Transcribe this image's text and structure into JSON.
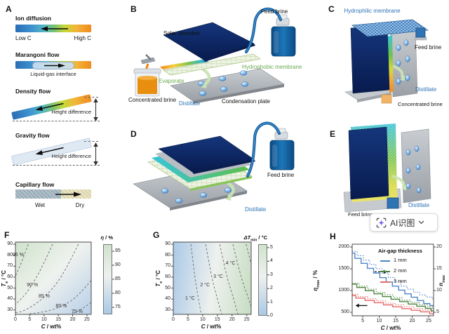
{
  "panel_labels": {
    "A": "A",
    "B": "B",
    "C": "C",
    "D": "D",
    "E": "E",
    "F": "F",
    "G": "G",
    "H": "H"
  },
  "panelA": {
    "ion": {
      "title": "Ion diffusion",
      "left": "Low C",
      "right": "High C"
    },
    "marangoni": {
      "title": "Marangoni flow",
      "caption": "Liquid-gas interface"
    },
    "density": {
      "title": "Density flow",
      "caption": "Height difference"
    },
    "gravity": {
      "title": "Gravity flow",
      "caption": "Height difference"
    },
    "capillary": {
      "title": "Capillary flow",
      "left": "Wet",
      "right": "Dry"
    }
  },
  "panelB": {
    "solar_absorber": "Solar absorber",
    "feed_brine": "Feed brine",
    "hydrophobic_membrane": "Hydrophobic membrane",
    "evaporate": "Evaporate",
    "concentrated_brine": "Concentrated brine",
    "distillate": "Distillate",
    "condensation_plate": "Condensation plate"
  },
  "panelC": {
    "hydrophilic_membrane": "Hydrophilic membrane",
    "feed_brine": "Feed brine",
    "distillate": "Distillate",
    "concentrated_brine": "Concentrated brine"
  },
  "panelD": {
    "feed_brine": "Feed brine",
    "distillate": "Distillate"
  },
  "panelE": {
    "distillate": "Distillate",
    "feed_brine": "Feed brine"
  },
  "ai_button": {
    "label": "AI识图",
    "icon": "ai-scan-star-icon"
  },
  "colors": {
    "navy": "#0e2f73",
    "brine_blue": "#1d77b8",
    "membrane_green": "#6aa84f",
    "distillate_blue": "#2e74b5",
    "concentrate_orange": "#e88f10",
    "plate_gray": "#a6a6a6"
  },
  "chart_data": [
    {
      "id": "F",
      "type": "contour",
      "xlabel_parts": [
        "C",
        "",
        " / wt%"
      ],
      "ylabel_parts": [
        "T",
        "e",
        " / °C"
      ],
      "xlim": [
        0,
        26.5
      ],
      "ylim": [
        26,
        92
      ],
      "xticks": [
        0,
        5,
        10,
        15,
        20,
        25
      ],
      "yticks": [
        30,
        40,
        50,
        60,
        70,
        80,
        90
      ],
      "colorbar": {
        "title_parts": [
          "η",
          "",
          " / %"
        ],
        "ticks": [
          75,
          80,
          85,
          90,
          95
        ],
        "range": [
          72.5,
          97.5
        ],
        "colors": [
          "#a9c9e4",
          "#eef1ee",
          "#cfe3cc"
        ]
      },
      "contours": [
        {
          "label": "95 %",
          "label_at": [
            1.2,
            80
          ],
          "points": [
            [
              4.5,
              90
            ],
            [
              2.8,
              78
            ],
            [
              1.2,
              68
            ],
            [
              0,
              61
            ]
          ]
        },
        {
          "label": "90 %",
          "label_at": [
            6.2,
            52
          ],
          "points": [
            [
              13,
              90
            ],
            [
              9.5,
              70
            ],
            [
              6.5,
              56
            ],
            [
              3.5,
              44
            ],
            [
              0,
              35
            ]
          ]
        },
        {
          "label": "85 %",
          "label_at": [
            10.3,
            42
          ],
          "points": [
            [
              22,
              90
            ],
            [
              17.5,
              66
            ],
            [
              13,
              49
            ],
            [
              8,
              37
            ],
            [
              3,
              29
            ],
            [
              0,
              27.5
            ]
          ]
        },
        {
          "label": "80 %",
          "label_at": [
            16.3,
            33
          ],
          "points": [
            [
              26.5,
              57
            ],
            [
              22,
              43
            ],
            [
              17,
              34
            ],
            [
              11,
              28.5
            ],
            [
              5,
              26.5
            ]
          ]
        },
        {
          "label": "75 %",
          "label_at": [
            21.8,
            27.8
          ],
          "points": [
            [
              26.5,
              37
            ],
            [
              23.5,
              31
            ],
            [
              20,
              27
            ]
          ]
        }
      ]
    },
    {
      "id": "G",
      "type": "contour",
      "xlabel_parts": [
        "C",
        "",
        " / wt%"
      ],
      "ylabel_parts": [
        "T",
        "e",
        " / °C"
      ],
      "xlim": [
        0,
        26.5
      ],
      "ylim": [
        26,
        92
      ],
      "xticks": [
        0,
        5,
        10,
        15,
        20,
        25
      ],
      "yticks": [
        30,
        40,
        50,
        60,
        70,
        80,
        90
      ],
      "colorbar": {
        "title_parts": [
          "ΔT",
          "min",
          " / °C"
        ],
        "ticks": [
          0,
          1,
          2,
          3,
          4,
          5
        ],
        "range": [
          0,
          5.25
        ],
        "colors": [
          "#a9c9e4",
          "#eef1ee",
          "#cfe3cc"
        ]
      },
      "contours": [
        {
          "label": "1 °C",
          "label_at": [
            6.2,
            40
          ],
          "points": [
            [
              6,
              90
            ],
            [
              7.3,
              60
            ],
            [
              8.3,
              44
            ],
            [
              9.5,
              26
            ]
          ]
        },
        {
          "label": "2 °C",
          "label_at": [
            11.3,
            52
          ],
          "points": [
            [
              11,
              90
            ],
            [
              13,
              60
            ],
            [
              14.5,
              45
            ],
            [
              16.5,
              26
            ]
          ]
        },
        {
          "label": "3 °C",
          "label_at": [
            15.8,
            60
          ],
          "points": [
            [
              15.8,
              90
            ],
            [
              18,
              62
            ],
            [
              20,
              45
            ],
            [
              22,
              26
            ]
          ]
        },
        {
          "label": "4 °C",
          "label_at": [
            20,
            72
          ],
          "points": [
            [
              20.3,
              90
            ],
            [
              23,
              60
            ],
            [
              25,
              45
            ],
            [
              26.5,
              33
            ]
          ]
        },
        {
          "label": "",
          "label_at": null,
          "points": [
            [
              24.8,
              90
            ],
            [
              26.5,
              72
            ]
          ]
        }
      ]
    },
    {
      "id": "H",
      "type": "step",
      "xlabel_parts": [
        "C",
        "",
        " / wt%"
      ],
      "ylabel_left_parts": [
        "η",
        "max",
        " / %"
      ],
      "ylabel_right_parts": [
        "n",
        "max",
        ""
      ],
      "xlim": [
        1.8,
        26.5
      ],
      "ylim_left": [
        420,
        2065
      ],
      "xticks": [
        5,
        10,
        15,
        20,
        25
      ],
      "yticks_left": [
        500,
        1000,
        1500,
        2000
      ],
      "yticks_right": [
        5,
        10,
        15,
        20
      ],
      "right_axis_scale": 100,
      "legend": {
        "title": "Air-gap thickness",
        "entries": [
          {
            "label": "1 mm",
            "color": "#4f86c6"
          },
          {
            "label": "2 mm",
            "color": "#4e8542"
          },
          {
            "label": "3 mm",
            "color": "#e66a6a"
          }
        ]
      },
      "series": [
        {
          "name": "1mm-max-efficiency",
          "color": "#4f86c6",
          "dash": "solid",
          "axis": "left",
          "x": [
            1.8,
            2.6,
            4.5,
            6.4,
            8.3,
            10.2,
            12.1,
            14.0,
            15.9,
            17.8,
            19.7,
            21.6,
            23.5,
            25.4
          ],
          "y": [
            1860,
            1740,
            1625,
            1510,
            1400,
            1295,
            1195,
            1100,
            1010,
            925,
            845,
            770,
            700,
            655
          ]
        },
        {
          "name": "1mm-max-stages",
          "color": "#4f86c6",
          "dash": "dotted",
          "axis": "right",
          "x": [
            1.8,
            3.3,
            5.2,
            7.1,
            9.0,
            10.9,
            12.8,
            14.7,
            16.6,
            18.5,
            20.4,
            22.3,
            24.2,
            26.0
          ],
          "y": [
            19,
            18,
            17,
            16,
            15,
            14,
            13,
            12,
            11,
            10.3,
            9.6,
            9.0,
            8.5,
            8.1
          ]
        },
        {
          "name": "2mm-max-efficiency",
          "color": "#4e8542",
          "dash": "solid",
          "axis": "left",
          "x": [
            1.8,
            3.2,
            5.8,
            8.4,
            11.0,
            13.6,
            16.2,
            18.8,
            21.4,
            24.0,
            25.8
          ],
          "y": [
            1145,
            1070,
            995,
            925,
            860,
            800,
            745,
            690,
            640,
            590,
            535
          ]
        },
        {
          "name": "2mm-max-stages",
          "color": "#4e8542",
          "dash": "dotted",
          "axis": "right",
          "x": [
            1.8,
            3.9,
            6.5,
            9.1,
            11.7,
            14.3,
            16.9,
            19.5,
            22.1,
            24.7,
            26.2
          ],
          "y": [
            11.7,
            11.0,
            10.3,
            9.6,
            9.0,
            8.4,
            7.8,
            7.3,
            6.8,
            6.3,
            5.9
          ]
        },
        {
          "name": "3mm-max-efficiency",
          "color": "#e66a6a",
          "dash": "solid",
          "axis": "left",
          "x": [
            1.8,
            2.9,
            5.7,
            8.5,
            11.3,
            14.1,
            16.9,
            19.7,
            22.5,
            25.3
          ],
          "y": [
            885,
            825,
            770,
            720,
            670,
            625,
            585,
            545,
            510,
            465
          ]
        },
        {
          "name": "3mm-max-stages",
          "color": "#e66a6a",
          "dash": "dotted",
          "axis": "right",
          "x": [
            1.8,
            3.6,
            6.4,
            9.2,
            12.0,
            14.8,
            17.6,
            20.4,
            23.2,
            25.8
          ],
          "y": [
            9.1,
            8.6,
            8.1,
            7.6,
            7.1,
            6.7,
            6.3,
            5.9,
            5.5,
            5.1
          ]
        }
      ],
      "annotations": [
        {
          "type": "arrow",
          "dir": "left",
          "dash": "solid",
          "x1": 6.4,
          "x2": 2.8,
          "y": 655
        },
        {
          "type": "arrow",
          "dir": "right",
          "dash": "dashed",
          "x1": 8.6,
          "x2": 12.4,
          "y": 1430
        }
      ]
    }
  ]
}
